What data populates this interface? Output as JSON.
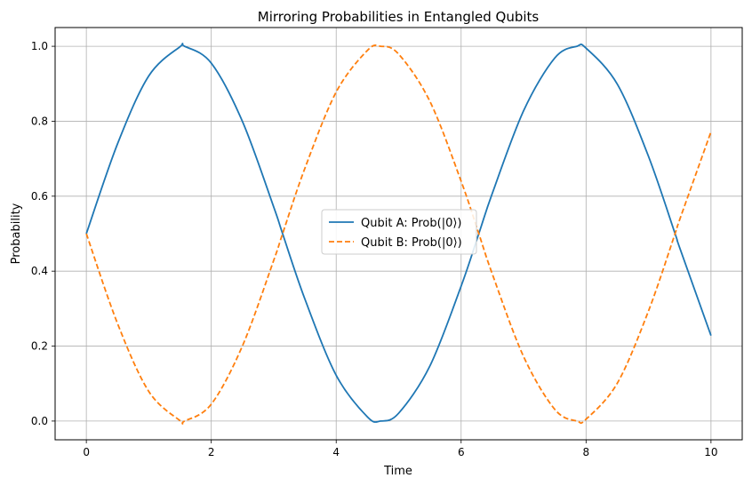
{
  "chart_data": {
    "type": "line",
    "title": "Mirroring Probabilities in Entangled Qubits",
    "xlabel": "Time",
    "ylabel": "Probability",
    "xlim": [
      -0.5,
      10.5
    ],
    "ylim": [
      -0.05,
      1.05
    ],
    "xticks": [
      0,
      2,
      4,
      6,
      8,
      10
    ],
    "xtick_labels": [
      "0",
      "2",
      "4",
      "6",
      "8",
      "10"
    ],
    "yticks": [
      0.0,
      0.2,
      0.4,
      0.6,
      0.8,
      1.0
    ],
    "ytick_labels": [
      "0.0",
      "0.2",
      "0.4",
      "0.6",
      "0.8",
      "1.0"
    ],
    "grid": true,
    "legend_position": "center",
    "x": [
      0,
      0.5,
      1,
      1.5,
      1.571,
      2,
      2.5,
      3,
      3.142,
      3.5,
      4,
      4.5,
      4.712,
      5,
      5.5,
      6,
      6.283,
      6.5,
      7,
      7.5,
      7.854,
      8,
      8.5,
      9,
      9.425,
      9.5,
      10
    ],
    "series": [
      {
        "name": "Qubit A: Prob(|0⟩)",
        "color": "#1f77b4",
        "style": "solid",
        "values": [
          0.5,
          0.74,
          0.921,
          0.999,
          1.0,
          0.955,
          0.799,
          0.571,
          0.5,
          0.325,
          0.122,
          0.011,
          0.0,
          0.021,
          0.147,
          0.36,
          0.5,
          0.608,
          0.828,
          0.969,
          1.0,
          0.995,
          0.899,
          0.706,
          0.5,
          0.462,
          0.228
        ]
      },
      {
        "name": "Qubit B: Prob(|0⟩)",
        "color": "#ff7f0e",
        "style": "dashed",
        "values": [
          0.5,
          0.26,
          0.079,
          0.001,
          0.0,
          0.045,
          0.201,
          0.429,
          0.5,
          0.675,
          0.878,
          0.989,
          1.0,
          0.979,
          0.853,
          0.64,
          0.5,
          0.392,
          0.172,
          0.031,
          0.0,
          0.005,
          0.101,
          0.294,
          0.5,
          0.538,
          0.772
        ]
      }
    ]
  }
}
